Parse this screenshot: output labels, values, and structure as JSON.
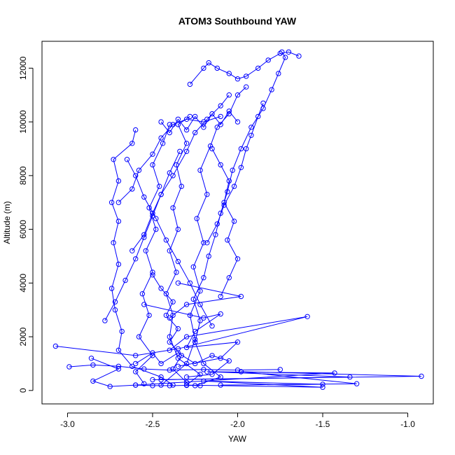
{
  "chart_data": {
    "type": "line",
    "title": "ATOM3 Southbound YAW",
    "xlabel": "YAW",
    "ylabel": "Altitude (m)",
    "xlim": [
      -3.15,
      -0.85
    ],
    "ylim": [
      -500,
      13000
    ],
    "x_ticks": [
      -3.0,
      -2.5,
      -2.0,
      -1.5,
      -1.0
    ],
    "x_tick_labels": [
      "-3.0",
      "-2.5",
      "-2.0",
      "-1.5",
      "-1.0"
    ],
    "y_ticks": [
      0,
      2000,
      4000,
      6000,
      8000,
      10000,
      12000
    ],
    "y_tick_labels": [
      "0",
      "2000",
      "4000",
      "6000",
      "8000",
      "10000",
      "12000"
    ],
    "grid": false,
    "legend": "none",
    "marker": "open-circle",
    "colors": {
      "series": "#0000ff",
      "axis": "#000000",
      "background": "#ffffff"
    },
    "series": [
      {
        "points": [
          [
            -2.38,
            200
          ],
          [
            -2.45,
            500
          ],
          [
            -2.62,
            900
          ],
          [
            -2.7,
            1500
          ],
          [
            -2.68,
            2200
          ],
          [
            -2.72,
            3000
          ],
          [
            -2.74,
            3800
          ],
          [
            -2.7,
            4700
          ],
          [
            -2.73,
            5500
          ],
          [
            -2.7,
            6300
          ],
          [
            -2.74,
            7000
          ],
          [
            -2.7,
            7800
          ],
          [
            -2.73,
            8600
          ],
          [
            -2.62,
            9200
          ],
          [
            -2.6,
            9700
          ]
        ]
      },
      {
        "points": [
          [
            -2.3,
            200
          ],
          [
            -2.22,
            600
          ],
          [
            -2.35,
            1200
          ],
          [
            -2.4,
            2000
          ],
          [
            -2.38,
            2800
          ],
          [
            -2.42,
            3600
          ],
          [
            -2.36,
            4400
          ],
          [
            -2.4,
            5200
          ],
          [
            -2.35,
            6000
          ],
          [
            -2.38,
            6800
          ],
          [
            -2.33,
            7600
          ],
          [
            -2.36,
            8400
          ],
          [
            -2.3,
            9200
          ],
          [
            -2.35,
            9900
          ],
          [
            -2.28,
            10200
          ]
        ]
      },
      {
        "points": [
          [
            -2.25,
            180
          ],
          [
            -2.1,
            500
          ],
          [
            -2.2,
            1000
          ],
          [
            -2.25,
            1800
          ],
          [
            -2.22,
            2600
          ],
          [
            -2.26,
            3400
          ],
          [
            -2.2,
            4200
          ],
          [
            -2.17,
            5000
          ],
          [
            -2.13,
            5800
          ],
          [
            -2.1,
            6600
          ],
          [
            -2.06,
            7400
          ],
          [
            -2.03,
            8200
          ],
          [
            -1.98,
            9000
          ],
          [
            -1.92,
            9800
          ],
          [
            -1.85,
            10500
          ],
          [
            -1.8,
            11200
          ],
          [
            -1.76,
            11800
          ],
          [
            -1.72,
            12400
          ],
          [
            -1.74,
            12600
          ]
        ]
      },
      {
        "points": [
          [
            -2.55,
            250
          ],
          [
            -2.6,
            700
          ],
          [
            -2.5,
            1300
          ],
          [
            -2.58,
            2000
          ],
          [
            -2.52,
            2800
          ],
          [
            -2.56,
            3600
          ],
          [
            -2.5,
            4400
          ],
          [
            -2.54,
            5200
          ],
          [
            -2.48,
            6000
          ],
          [
            -2.52,
            6800
          ],
          [
            -2.46,
            7600
          ],
          [
            -2.5,
            8400
          ],
          [
            -2.44,
            9200
          ],
          [
            -2.4,
            9900
          ]
        ]
      },
      {
        "points": [
          [
            -2.45,
            200
          ],
          [
            -2.3,
            1000
          ],
          [
            -2.25,
            1900
          ],
          [
            -2.28,
            2800
          ],
          [
            -2.22,
            3700
          ],
          [
            -2.26,
            4600
          ],
          [
            -2.2,
            5500
          ],
          [
            -2.24,
            6400
          ],
          [
            -2.18,
            7300
          ],
          [
            -2.22,
            8200
          ],
          [
            -2.16,
            9100
          ],
          [
            -2.12,
            9800
          ],
          [
            -2.05,
            10300
          ],
          [
            -2.0,
            11000
          ],
          [
            -1.95,
            11300
          ]
        ]
      },
      {
        "points": [
          [
            -3.07,
            1650
          ],
          [
            -2.6,
            1300
          ],
          [
            -2.35,
            1550
          ],
          [
            -1.59,
            2750
          ],
          [
            -2.3,
            2000
          ],
          [
            -2.4,
            1500
          ]
        ]
      },
      {
        "points": [
          [
            -2.35,
            4000
          ],
          [
            -1.98,
            3500
          ],
          [
            -2.3,
            3200
          ],
          [
            -2.4,
            2700
          ]
        ]
      },
      {
        "points": [
          [
            -2.45,
            400
          ],
          [
            -0.92,
            530
          ],
          [
            -1.98,
            700
          ],
          [
            -1.3,
            250
          ],
          [
            -2.1,
            200
          ],
          [
            -1.5,
            230
          ],
          [
            -2.2,
            350
          ],
          [
            -1.5,
            120
          ],
          [
            -2.3,
            200
          ]
        ]
      },
      {
        "points": [
          [
            -2.6,
            200
          ],
          [
            -1.43,
            650
          ],
          [
            -2.18,
            700
          ],
          [
            -1.34,
            500
          ],
          [
            -2.5,
            400
          ]
        ]
      },
      {
        "points": [
          [
            -2.86,
            1200
          ],
          [
            -2.7,
            800
          ],
          [
            -2.85,
            350
          ],
          [
            -2.75,
            150
          ],
          [
            -2.6,
            200
          ],
          [
            -2.5,
            180
          ],
          [
            -2.4,
            180
          ],
          [
            -2.3,
            190
          ],
          [
            -2.22,
            180
          ]
        ]
      },
      {
        "points": [
          [
            -2.99,
            880
          ],
          [
            -2.85,
            950
          ],
          [
            -2.7,
            900
          ],
          [
            -2.55,
            800
          ],
          [
            -2.4,
            760
          ],
          [
            -2.2,
            780
          ],
          [
            -2.0,
            760
          ],
          [
            -1.75,
            780
          ]
        ]
      },
      {
        "points": [
          [
            -2.55,
            3200
          ],
          [
            -2.2,
            2700
          ],
          [
            -2.1,
            2850
          ],
          [
            -2.25,
            2200
          ],
          [
            -2.3,
            1600
          ],
          [
            -2.0,
            1800
          ],
          [
            -2.1,
            1200
          ],
          [
            -2.35,
            900
          ]
        ]
      },
      {
        "points": [
          [
            -2.62,
            5200
          ],
          [
            -2.55,
            5800
          ],
          [
            -2.5,
            6600
          ],
          [
            -2.45,
            7300
          ],
          [
            -2.38,
            8000
          ],
          [
            -2.3,
            8900
          ],
          [
            -2.25,
            9600
          ],
          [
            -2.18,
            10100
          ],
          [
            -2.1,
            10600
          ],
          [
            -2.05,
            11000
          ]
        ]
      },
      {
        "points": [
          [
            -2.28,
            11400
          ],
          [
            -2.2,
            12000
          ],
          [
            -2.17,
            12200
          ],
          [
            -2.12,
            12000
          ],
          [
            -2.05,
            11800
          ],
          [
            -2.0,
            11600
          ],
          [
            -1.95,
            11700
          ],
          [
            -1.88,
            12000
          ],
          [
            -1.82,
            12300
          ],
          [
            -1.75,
            12550
          ],
          [
            -1.7,
            12600
          ],
          [
            -1.64,
            12450
          ]
        ]
      },
      {
        "points": [
          [
            -2.5,
            4300
          ],
          [
            -2.45,
            3800
          ],
          [
            -2.38,
            3300
          ],
          [
            -2.42,
            2800
          ],
          [
            -2.35,
            2300
          ],
          [
            -2.4,
            1800
          ],
          [
            -2.33,
            1300
          ],
          [
            -2.38,
            800
          ],
          [
            -2.3,
            300
          ]
        ]
      },
      {
        "points": [
          [
            -2.65,
            8600
          ],
          [
            -2.6,
            8000
          ],
          [
            -2.55,
            7200
          ],
          [
            -2.48,
            6400
          ],
          [
            -2.42,
            5600
          ],
          [
            -2.35,
            4800
          ],
          [
            -2.28,
            4000
          ],
          [
            -2.22,
            3200
          ],
          [
            -2.15,
            2400
          ]
        ]
      },
      {
        "points": [
          [
            -2.15,
            9000
          ],
          [
            -2.1,
            8400
          ],
          [
            -2.05,
            7800
          ],
          [
            -2.08,
            7000
          ],
          [
            -2.02,
            6300
          ],
          [
            -2.06,
            5600
          ],
          [
            -2.0,
            4900
          ],
          [
            -2.05,
            4200
          ],
          [
            -2.1,
            3500
          ]
        ]
      },
      {
        "points": [
          [
            -2.45,
            10000
          ],
          [
            -2.4,
            9600
          ],
          [
            -2.35,
            10100
          ],
          [
            -2.3,
            9700
          ],
          [
            -2.25,
            10200
          ],
          [
            -2.2,
            9800
          ],
          [
            -2.15,
            10300
          ],
          [
            -2.1,
            9900
          ],
          [
            -2.05,
            10400
          ],
          [
            -2.0,
            10000
          ]
        ]
      },
      {
        "points": [
          [
            -2.78,
            2600
          ],
          [
            -2.72,
            3300
          ],
          [
            -2.66,
            4100
          ],
          [
            -2.6,
            4900
          ],
          [
            -2.55,
            5700
          ],
          [
            -2.5,
            6500
          ],
          [
            -2.45,
            7300
          ],
          [
            -2.4,
            8100
          ],
          [
            -2.34,
            8900
          ]
        ]
      },
      {
        "points": [
          [
            -2.6,
            1000
          ],
          [
            -2.5,
            1400
          ],
          [
            -2.45,
            1000
          ],
          [
            -2.35,
            1400
          ],
          [
            -2.25,
            1000
          ],
          [
            -2.15,
            1300
          ],
          [
            -2.05,
            1100
          ],
          [
            -2.15,
            600
          ],
          [
            -2.3,
            500
          ]
        ]
      },
      {
        "points": [
          [
            -2.18,
            5500
          ],
          [
            -2.12,
            6200
          ],
          [
            -2.08,
            6900
          ],
          [
            -2.02,
            7600
          ],
          [
            -1.98,
            8300
          ],
          [
            -1.95,
            9000
          ],
          [
            -1.92,
            9500
          ],
          [
            -1.88,
            10200
          ],
          [
            -1.85,
            10700
          ]
        ]
      },
      {
        "points": [
          [
            -2.7,
            7000
          ],
          [
            -2.62,
            7500
          ],
          [
            -2.58,
            8200
          ],
          [
            -2.5,
            8800
          ],
          [
            -2.45,
            9400
          ],
          [
            -2.38,
            9900
          ],
          [
            -2.3,
            10100
          ],
          [
            -2.2,
            10000
          ],
          [
            -2.1,
            10200
          ]
        ]
      }
    ]
  }
}
